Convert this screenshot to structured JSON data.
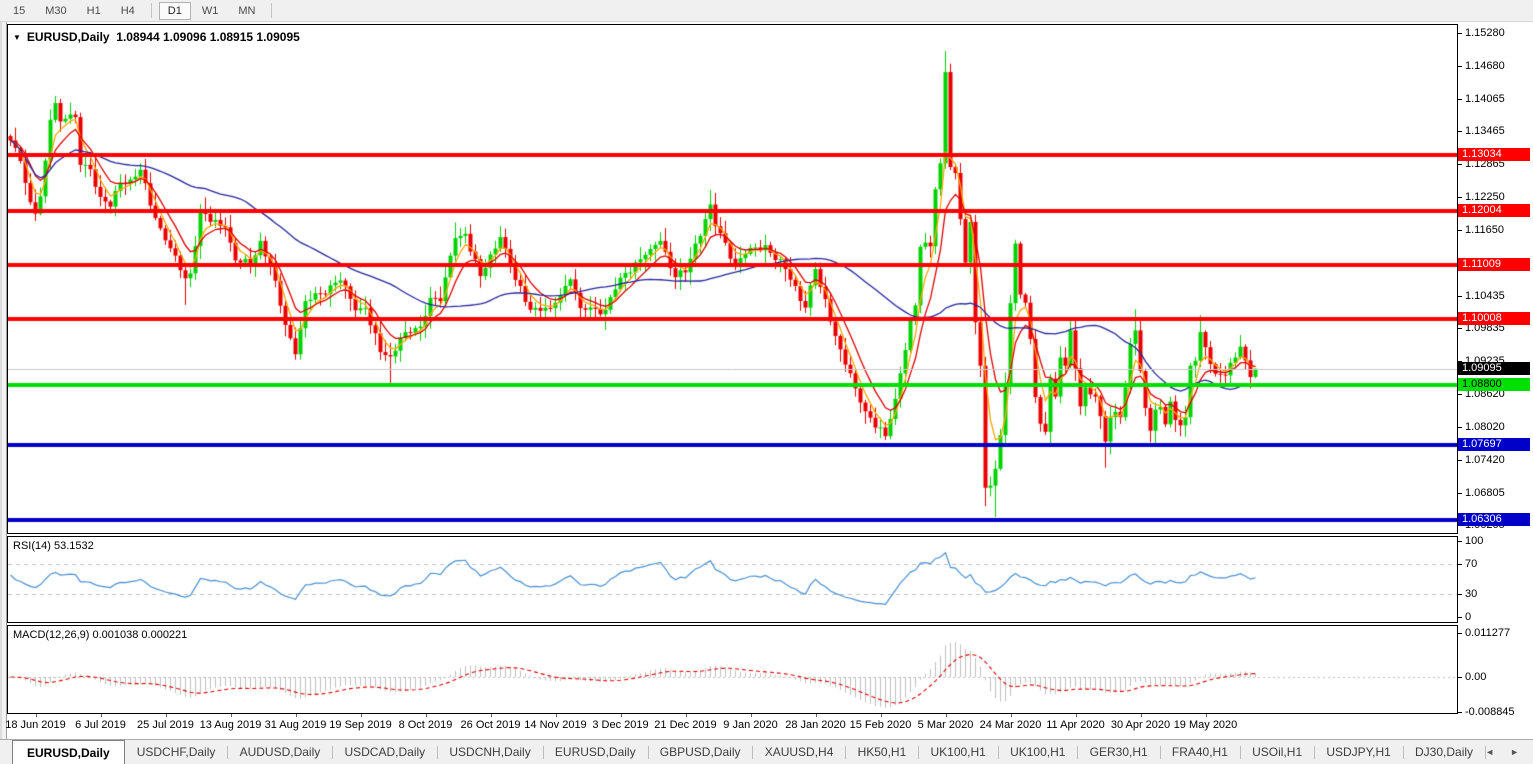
{
  "toolbar": {
    "timeframes": [
      {
        "label": "15",
        "active": false
      },
      {
        "label": "M30",
        "active": false
      },
      {
        "label": "H1",
        "active": false
      },
      {
        "label": "H4",
        "active": false
      },
      {
        "label": "D1",
        "active": true
      },
      {
        "label": "W1",
        "active": false
      },
      {
        "label": "MN",
        "active": false
      }
    ],
    "separators_after_index": [
      3,
      6
    ]
  },
  "chart": {
    "symbol_title": "EURUSD,Daily",
    "ohlc_display": "1.08944 1.09096 1.08915 1.09095"
  },
  "chart_data": {
    "type": "candlestick",
    "symbol": "EURUSD",
    "timeframe": "Daily",
    "bars": 250,
    "ylim": [
      1.06085,
      1.15427
    ],
    "last_bar": {
      "open": 1.08944,
      "high": 1.09096,
      "low": 1.08915,
      "close": 1.09095
    },
    "close_anchors": [
      [
        0,
        1.133
      ],
      [
        2,
        1.1292
      ],
      [
        4,
        1.1216
      ],
      [
        5,
        1.1195
      ],
      [
        6,
        1.1227
      ],
      [
        7,
        1.1293
      ],
      [
        8,
        1.1368
      ],
      [
        9,
        1.1399
      ],
      [
        10,
        1.1365
      ],
      [
        11,
        1.137
      ],
      [
        13,
        1.1373
      ],
      [
        14,
        1.1285
      ],
      [
        16,
        1.1277
      ],
      [
        18,
        1.1226
      ],
      [
        20,
        1.1208
      ],
      [
        22,
        1.1252
      ],
      [
        24,
        1.1258
      ],
      [
        26,
        1.1276
      ],
      [
        28,
        1.121
      ],
      [
        31,
        1.1146
      ],
      [
        35,
        1.1076
      ],
      [
        36,
        1.1085
      ],
      [
        38,
        1.1203
      ],
      [
        40,
        1.118
      ],
      [
        43,
        1.117
      ],
      [
        45,
        1.1109
      ],
      [
        48,
        1.11
      ],
      [
        50,
        1.1145
      ],
      [
        52,
        1.11
      ],
      [
        55,
        1.099
      ],
      [
        57,
        1.0936
      ],
      [
        59,
        1.1034
      ],
      [
        62,
        1.1048
      ],
      [
        64,
        1.1063
      ],
      [
        66,
        1.1072
      ],
      [
        69,
        1.1017
      ],
      [
        71,
        1.1021
      ],
      [
        74,
        1.094
      ],
      [
        76,
        1.0932
      ],
      [
        78,
        1.0966
      ],
      [
        82,
        1.0987
      ],
      [
        84,
        1.104
      ],
      [
        86,
        1.1034
      ],
      [
        89,
        1.115
      ],
      [
        91,
        1.1158
      ],
      [
        94,
        1.108
      ],
      [
        98,
        1.1152
      ],
      [
        101,
        1.1073
      ],
      [
        104,
        1.1018
      ],
      [
        108,
        1.1021
      ],
      [
        112,
        1.1074
      ],
      [
        114,
        1.1021
      ],
      [
        119,
        1.1018
      ],
      [
        122,
        1.1077
      ],
      [
        128,
        1.113
      ],
      [
        130,
        1.1145
      ],
      [
        133,
        1.1078
      ],
      [
        135,
        1.1087
      ],
      [
        140,
        1.1212
      ],
      [
        141,
        1.1172
      ],
      [
        145,
        1.1103
      ],
      [
        147,
        1.1121
      ],
      [
        151,
        1.1137
      ],
      [
        155,
        1.1093
      ],
      [
        159,
        1.1022
      ],
      [
        161,
        1.1093
      ],
      [
        162,
        1.106
      ],
      [
        166,
        1.0945
      ],
      [
        169,
        1.0873
      ],
      [
        171,
        1.0831
      ],
      [
        175,
        1.0785
      ],
      [
        177,
        1.0854
      ],
      [
        180,
        1.1001
      ],
      [
        181,
        1.1026
      ],
      [
        182,
        1.1134
      ],
      [
        184,
        1.1135
      ],
      [
        185,
        1.124
      ],
      [
        186,
        1.1288
      ],
      [
        187,
        1.1456
      ],
      [
        188,
        1.1281
      ],
      [
        189,
        1.127
      ],
      [
        190,
        1.1185
      ],
      [
        191,
        1.1105
      ],
      [
        192,
        1.118
      ],
      [
        193,
        1.0995
      ],
      [
        194,
        1.0915
      ],
      [
        195,
        1.069
      ],
      [
        196,
        1.0694
      ],
      [
        197,
        1.0725
      ],
      [
        198,
        1.0787
      ],
      [
        199,
        1.088
      ],
      [
        200,
        1.103
      ],
      [
        201,
        1.114
      ],
      [
        202,
        1.1046
      ],
      [
        203,
        1.1031
      ],
      [
        204,
        1.0964
      ],
      [
        205,
        1.0857
      ],
      [
        206,
        1.0808
      ],
      [
        207,
        1.0793
      ],
      [
        208,
        1.0891
      ],
      [
        209,
        1.0858
      ],
      [
        210,
        1.093
      ],
      [
        211,
        1.0915
      ],
      [
        212,
        1.098
      ],
      [
        213,
        1.091
      ],
      [
        214,
        1.084
      ],
      [
        215,
        1.0875
      ],
      [
        216,
        1.0862
      ],
      [
        217,
        1.0858
      ],
      [
        218,
        1.0822
      ],
      [
        219,
        1.0775
      ],
      [
        220,
        1.082
      ],
      [
        221,
        1.083
      ],
      [
        222,
        1.082
      ],
      [
        223,
        1.0875
      ],
      [
        224,
        1.0955
      ],
      [
        225,
        1.098
      ],
      [
        226,
        1.0905
      ],
      [
        227,
        1.0837
      ],
      [
        228,
        1.0795
      ],
      [
        229,
        1.0834
      ],
      [
        230,
        1.0839
      ],
      [
        231,
        1.0807
      ],
      [
        232,
        1.0849
      ],
      [
        233,
        1.0815
      ],
      [
        234,
        1.0805
      ],
      [
        235,
        1.082
      ],
      [
        236,
        1.0915
      ],
      [
        237,
        1.0924
      ],
      [
        238,
        1.0977
      ],
      [
        239,
        1.0949
      ],
      [
        241,
        1.09
      ],
      [
        243,
        1.0897
      ],
      [
        245,
        1.093
      ],
      [
        246,
        1.095
      ],
      [
        248,
        1.0894
      ],
      [
        249,
        1.09095
      ]
    ],
    "extremes": [
      [
        9,
        "h",
        1.1412
      ],
      [
        35,
        "l",
        1.1027
      ],
      [
        57,
        "l",
        1.0926
      ],
      [
        76,
        "l",
        1.0879
      ],
      [
        89,
        "h",
        1.1179
      ],
      [
        119,
        "l",
        1.0981
      ],
      [
        140,
        "h",
        1.1239
      ],
      [
        175,
        "l",
        1.0778
      ],
      [
        187,
        "h",
        1.1495
      ],
      [
        195,
        "l",
        1.0656
      ],
      [
        197,
        "l",
        1.0636
      ],
      [
        201,
        "h",
        1.1147
      ],
      [
        219,
        "l",
        1.0727
      ],
      [
        225,
        "h",
        1.1019
      ],
      [
        229,
        "l",
        1.0767
      ],
      [
        238,
        "h",
        1.1008
      ]
    ],
    "candle_bull_color": "#00d300",
    "candle_bear_color": "#ea0000",
    "moving_averages": [
      {
        "name": "fast",
        "method": "ema",
        "period": 4,
        "color": "#ffa500"
      },
      {
        "name": "medium",
        "method": "ema",
        "period": 8,
        "color": "#dd0000"
      },
      {
        "name": "slow",
        "method": "sma",
        "period": 40,
        "color": "#26269b"
      }
    ],
    "levels": [
      {
        "price": 1.13034,
        "text": "1.13034",
        "color": "#ff0000",
        "label_text_color": "#ffffff"
      },
      {
        "price": 1.12004,
        "text": "1.12004",
        "color": "#ff0000",
        "label_text_color": "#ffffff"
      },
      {
        "price": 1.11009,
        "text": "1.11009",
        "color": "#ff0000",
        "label_text_color": "#ffffff"
      },
      {
        "price": 1.10008,
        "text": "1.10008",
        "color": "#ff0000",
        "label_text_color": "#ffffff"
      },
      {
        "price": 1.088,
        "text": "1.08800",
        "color": "#00e000",
        "label_text_color": "#000000"
      },
      {
        "price": 1.07697,
        "text": "1.07697",
        "color": "#0000c8",
        "label_text_color": "#ffffff"
      },
      {
        "price": 1.06306,
        "text": "1.06306",
        "color": "#0000c8",
        "label_text_color": "#ffffff"
      }
    ],
    "current_price": {
      "price": 1.09095,
      "text": "1.09095",
      "line_color": "#c8c8c8",
      "label_bg": "#000000",
      "label_text_color": "#ffffff"
    },
    "y_ticks": [
      "1.15280",
      "1.14680",
      "1.14065",
      "1.13465",
      "1.12865",
      "1.12250",
      "1.11650",
      "1.10435",
      "1.09835",
      "1.09235",
      "1.08620",
      "1.08020",
      "1.07420",
      "1.06805",
      "1.06205"
    ],
    "x_labels": [
      "18 Jun 2019",
      "6 Jul 2019",
      "25 Jul 2019",
      "13 Aug 2019",
      "31 Aug 2019",
      "19 Sep 2019",
      "8 Oct 2019",
      "26 Oct 2019",
      "14 Nov 2019",
      "3 Dec 2019",
      "21 Dec 2019",
      "9 Jan 2020",
      "28 Jan 2020",
      "15 Feb 2020",
      "5 Mar 2020",
      "24 Mar 2020",
      "11 Apr 2020",
      "30 Apr 2020",
      "19 May 2020"
    ],
    "rsi": {
      "label": "RSI(14) 53.1532",
      "period": 14,
      "value": 53.1532,
      "color": "#4a90d2",
      "levels": [
        70,
        30
      ],
      "level_line_color": "#c0c0c0",
      "ticks": [
        100,
        70,
        30,
        0
      ]
    },
    "macd": {
      "label": "MACD(12,26,9) 0.001038 0.000221",
      "fast": 12,
      "slow": 26,
      "signal": 9,
      "value": 0.001038,
      "signal_value": 0.000221,
      "hist_color": "#bfbfbf",
      "signal_color": "#e00000",
      "zero_line_color": "#c0c0c0",
      "ticks": [
        {
          "v": 0.011277,
          "text": "0.011277"
        },
        {
          "v": 0,
          "text": "0.00"
        },
        {
          "v": -0.008845,
          "text": "-0.008845"
        }
      ]
    }
  },
  "tabs": {
    "items": [
      {
        "label": "EURUSD,Daily",
        "active": true
      },
      {
        "label": "USDCHF,Daily",
        "active": false
      },
      {
        "label": "AUDUSD,Daily",
        "active": false
      },
      {
        "label": "USDCAD,Daily",
        "active": false
      },
      {
        "label": "USDCNH,Daily",
        "active": false
      },
      {
        "label": "EURUSD,Daily",
        "active": false
      },
      {
        "label": "GBPUSD,Daily",
        "active": false
      },
      {
        "label": "XAUUSD,H4",
        "active": false
      },
      {
        "label": "HK50,H1",
        "active": false
      },
      {
        "label": "UK100,H1",
        "active": false
      },
      {
        "label": "UK100,H1",
        "active": false
      },
      {
        "label": "GER30,H1",
        "active": false
      },
      {
        "label": "FRA40,H1",
        "active": false
      },
      {
        "label": "USOil,H1",
        "active": false
      },
      {
        "label": "USDJPY,H1",
        "active": false
      },
      {
        "label": "DJ30,Daily",
        "active": false
      }
    ],
    "scroll_left": "◄",
    "scroll_right": "►"
  }
}
